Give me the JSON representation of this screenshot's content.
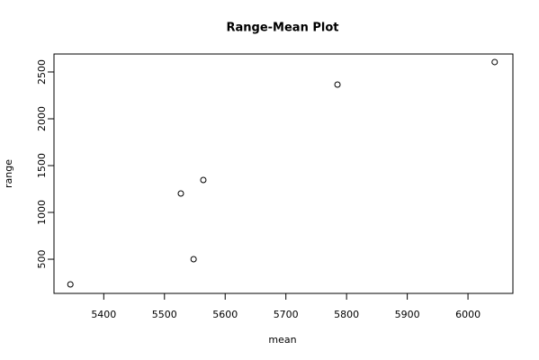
{
  "chart_data": {
    "type": "scatter",
    "title": "Range-Mean Plot",
    "x_label": "mean",
    "y_label": "range",
    "x": [
      5345,
      5527,
      5548,
      5564,
      5785,
      6044
    ],
    "values": [
      231,
      1202,
      500,
      1346,
      2365,
      2606
    ],
    "color": "#000000",
    "xlim": [
      5318,
      6074
    ],
    "ylim": [
      135,
      2692
    ],
    "xticks": [
      5400,
      5500,
      5600,
      5700,
      5800,
      5900,
      6000
    ],
    "yticks": [
      500,
      1000,
      1500,
      2000,
      2500
    ],
    "grid": false
  }
}
